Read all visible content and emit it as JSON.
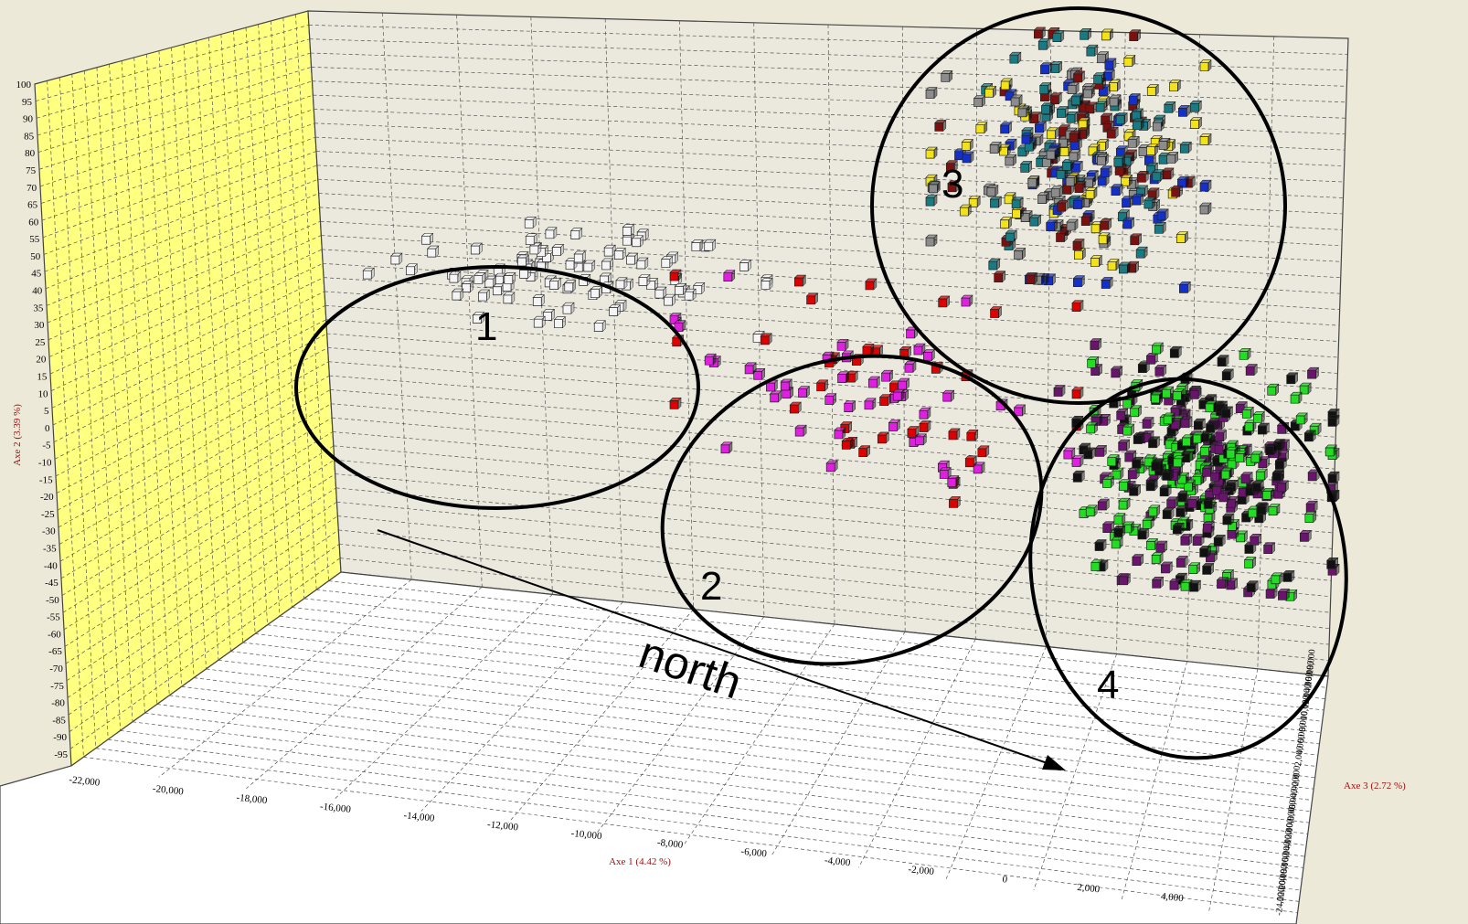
{
  "chart_data": {
    "type": "scatter",
    "projection": "3d",
    "grid": true,
    "axes": {
      "x": {
        "title": "Axe 1 (4.42 %)",
        "ticks": [
          "-22,000",
          "-20,000",
          "-18,000",
          "-16,000",
          "-14,000",
          "-12,000",
          "-10,000",
          "-8,000",
          "-6,000",
          "-4,000",
          "-2,000",
          "0",
          "2,000",
          "4,000"
        ],
        "range": [
          -22000,
          4000
        ]
      },
      "y": {
        "title": "Axe 2 (3.39 %)",
        "ticks": [
          "100",
          "95",
          "90",
          "85",
          "80",
          "75",
          "70",
          "65",
          "60",
          "55",
          "50",
          "45",
          "40",
          "35",
          "30",
          "25",
          "20",
          "15",
          "10",
          "5",
          "0",
          "-5",
          "-10",
          "-15",
          "-20",
          "-25",
          "-30",
          "-35",
          "-40",
          "-45",
          "-50",
          "-55",
          "-60",
          "-65",
          "-70",
          "-75",
          "-80",
          "-85",
          "-90",
          "-95"
        ],
        "range": [
          -95,
          100
        ]
      },
      "z": {
        "title": "Axe 3 (2.72 %)",
        "ticks": [
          "18,000",
          "16,000",
          "14,000",
          "12,000",
          "10,000",
          "8,000",
          "6,000",
          "4,000",
          "2,000",
          "0",
          "-2,000",
          "-4,000",
          "-6,000",
          "-8,000",
          "-10,000",
          "-12,000",
          "-14,000",
          "-16,000",
          "-18,000",
          "-20,000",
          "-22,000",
          "-24,000"
        ],
        "range": [
          -24000,
          18000
        ]
      }
    },
    "colors": {
      "floor": "#ffffff",
      "back_wall": "#ebe9de",
      "side_wall": "#ffff80",
      "grid": "#555555",
      "white": "#f4f4f4",
      "gray": "#8c8c8c",
      "blue": "#1530c8",
      "yellow": "#f2e21a",
      "teal": "#1a7a82",
      "maroon": "#7a1010",
      "red": "#dd0000",
      "magenta": "#e020e0",
      "green": "#22dd22",
      "purple": "#6a146e",
      "black": "#111111"
    },
    "clusters": [
      {
        "label": "1",
        "colors": [
          "white"
        ],
        "x_range": [
          -15500,
          -4500
        ],
        "y_range": [
          -5,
          30
        ],
        "count": 90
      },
      {
        "label": "2",
        "colors": [
          "red",
          "magenta"
        ],
        "x_range": [
          -7000,
          4000
        ],
        "y_range": [
          -55,
          15
        ],
        "count": 85
      },
      {
        "label": "3",
        "colors": [
          "gray",
          "blue",
          "yellow",
          "teal",
          "maroon"
        ],
        "x_range": [
          0,
          7500
        ],
        "y_range": [
          20,
          100
        ],
        "count": 260
      },
      {
        "label": "4",
        "colors": [
          "green",
          "purple",
          "black"
        ],
        "x_range": [
          3500,
          11000
        ],
        "y_range": [
          -75,
          0
        ],
        "count": 320
      }
    ]
  },
  "annotations": {
    "north": "north"
  }
}
